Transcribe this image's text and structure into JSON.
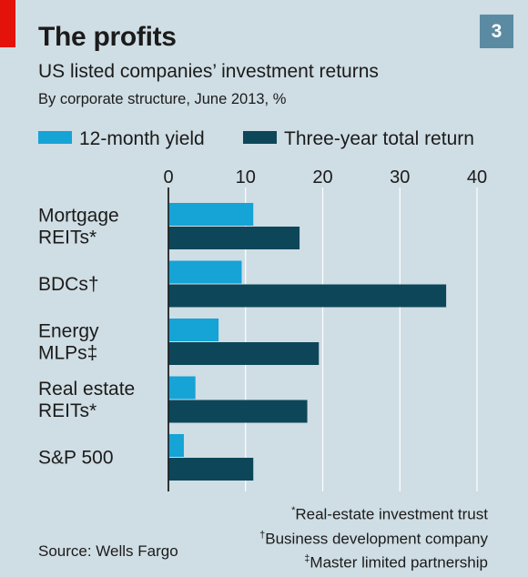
{
  "header": {
    "title": "The profits",
    "badge": "3",
    "subtitle": "US listed companies’ investment returns",
    "subsubtitle": "By corporate structure, June 2013, %"
  },
  "colors": {
    "background": "#cfdde4",
    "accent_red": "#e3120b",
    "badge": "#5b8ba3",
    "yield": "#16a3d6",
    "total_return": "#0d4659",
    "gridline": "#ffffff"
  },
  "chart_data": {
    "type": "bar",
    "orientation": "horizontal",
    "title": "The profits",
    "subtitle": "US listed companies’ investment returns",
    "units": "%",
    "categories": [
      {
        "lines": [
          "Mortgage",
          "REITs*"
        ]
      },
      {
        "lines": [
          "BDCs†"
        ]
      },
      {
        "lines": [
          "Energy",
          "MLPs‡"
        ]
      },
      {
        "lines": [
          "Real estate",
          "REITs*"
        ]
      },
      {
        "lines": [
          "S&P 500"
        ]
      }
    ],
    "series": [
      {
        "name": "12-month yield",
        "values": [
          11,
          9.5,
          6.5,
          3.5,
          2
        ]
      },
      {
        "name": "Three-year total return",
        "values": [
          17,
          36,
          19.5,
          18,
          11
        ]
      }
    ],
    "xlim": [
      0,
      40
    ],
    "ticks": [
      0,
      10,
      20,
      30,
      40
    ],
    "grid": true,
    "axis_position": "top",
    "legend": "top-left"
  },
  "footnotes": [
    "*Real-estate investment trust",
    "†Business development company",
    "‡Master limited partnership"
  ],
  "source": "Source: Wells Fargo"
}
